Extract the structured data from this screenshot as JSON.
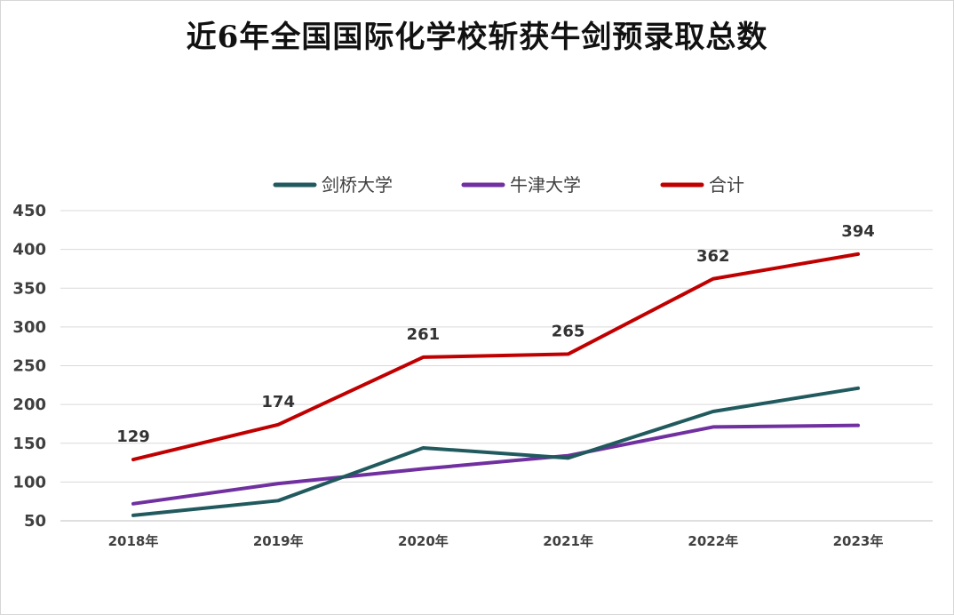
{
  "chart_data": {
    "type": "line",
    "title": "近6年全国国际化学校斩获牛剑预录取总数",
    "categories": [
      "2018年",
      "2019年",
      "2020年",
      "2021年",
      "2022年",
      "2023年"
    ],
    "series": [
      {
        "name": "剑桥大学",
        "color": "#215a5e",
        "values": [
          57,
          76,
          144,
          131,
          191,
          221
        ]
      },
      {
        "name": "牛津大学",
        "color": "#7030a0",
        "values": [
          72,
          98,
          117,
          134,
          171,
          173
        ]
      },
      {
        "name": "合计",
        "color": "#c00000",
        "values": [
          129,
          174,
          261,
          265,
          362,
          394
        ]
      }
    ],
    "data_labels": {
      "series": "合计",
      "values": [
        "129",
        "174",
        "261",
        "265",
        "362",
        "394"
      ]
    },
    "ylim": [
      50,
      450
    ],
    "yticks": [
      "50",
      "100",
      "150",
      "200",
      "250",
      "300",
      "350",
      "400",
      "450"
    ],
    "grid": true,
    "legend_position": "top",
    "xlabel": "",
    "ylabel": ""
  }
}
